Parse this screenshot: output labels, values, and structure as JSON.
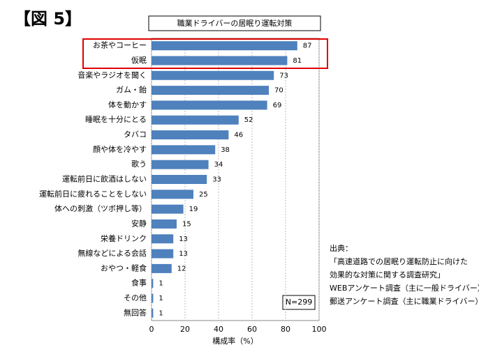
{
  "chart_data": {
    "type": "bar",
    "orientation": "horizontal",
    "figure_label": "【図 5】",
    "title": "職業ドライバーの居眠り運転対策",
    "categories": [
      "お茶やコーヒー",
      "仮眠",
      "音楽やラジオを聞く",
      "ガム・飴",
      "体を動かす",
      "睡眠を十分にとる",
      "タバコ",
      "顔や体を冷やす",
      "歌う",
      "運転前日に飲酒はしない",
      "運転前日に疲れることをしない",
      "体への刺激（ツボ押し等）",
      "安静",
      "栄養ドリンク",
      "無線などによる会話",
      "おやつ・軽食",
      "食事",
      "その他",
      "無回答"
    ],
    "values": [
      87,
      81,
      73,
      70,
      69,
      52,
      46,
      38,
      34,
      33,
      25,
      19,
      15,
      13,
      13,
      12,
      1,
      1,
      1
    ],
    "color": "#4f81bd",
    "xlim": [
      0,
      100
    ],
    "xticks": [
      0,
      20,
      40,
      60,
      80,
      100
    ],
    "grid": true,
    "xlabel": "構成率（%）",
    "note": "N=299",
    "source": [
      "出典：",
      "「高速道路での居眠り運転防止に向けた",
      "効果的な対策に関する調査研究」",
      "WEBアンケート調査（主に一般ドライバー）",
      "郵送アンケート調査（主に職業ドライバー）"
    ]
  }
}
